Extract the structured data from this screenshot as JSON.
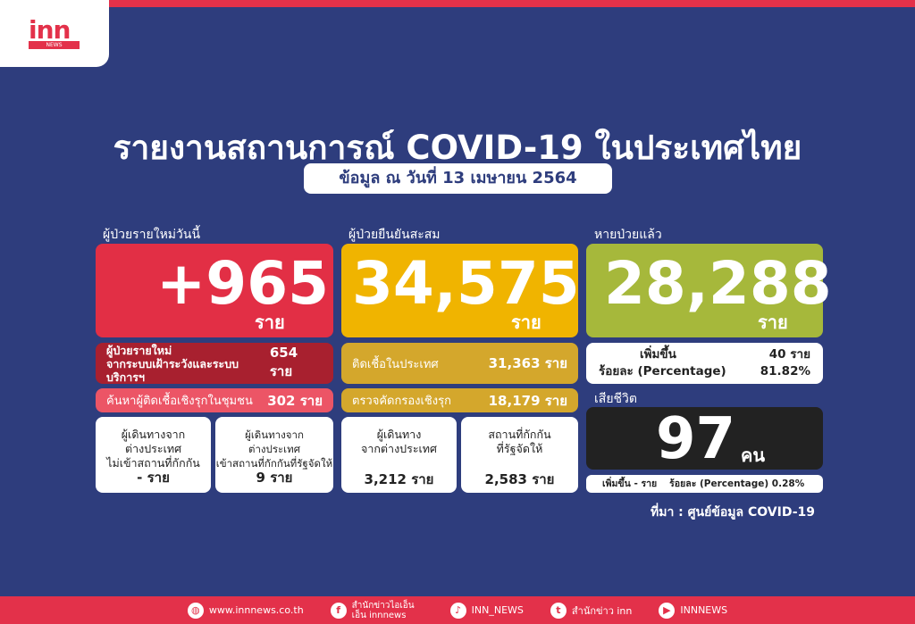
{
  "logo": {
    "mark": "inn",
    "sub": "NEWS"
  },
  "title": "รายงานสถานการณ์ COVID-19 ในประเทศไทย",
  "date": "ข้อมูล ณ วันที่ 13 เมษายน 2564",
  "new_cases": {
    "label": "ผู้ป่วยรายใหม่วันนี้",
    "value": "+965",
    "unit": "ราย",
    "row1_label_1": "ผู้ป่วยรายใหม่",
    "row1_label_2": "จากระบบเฝ้าระวังและระบบบริการฯ",
    "row1_value": "654 ราย",
    "row2_label": "ค้นหาผู้ติดเชื้อเชิงรุกในชุมชน",
    "row2_value": "302 ราย",
    "box1": {
      "l1": "ผู้เดินทางจาก",
      "l2": "ต่างประเทศ",
      "l3": "ไม่เข้าสถานที่กักกัน",
      "value": "- ราย"
    },
    "box2": {
      "l1": "ผู้เดินทางจาก",
      "l2": "ต่างประเทศ",
      "l3": "เข้าสถานที่กักกันที่รัฐจัดให้",
      "value": "9 ราย"
    }
  },
  "cumulative": {
    "label": "ผู้ป่วยยืนยันสะสม",
    "value": "34,575",
    "unit": "ราย",
    "row1_label": "ติดเชื้อในประเทศ",
    "row1_value": "31,363 ราย",
    "row2_label": "ตรวจคัดกรองเชิงรุก",
    "row2_value": "18,179 ราย",
    "box1": {
      "l1": "ผู้เดินทาง",
      "l2": "จากต่างประเทศ",
      "value": "3,212 ราย"
    },
    "box2": {
      "l1": "สถานที่กักกัน",
      "l2": "ที่รัฐจัดให้",
      "value": "2,583 ราย"
    }
  },
  "recovered": {
    "label": "หายป่วยแล้ว",
    "value": "28,288",
    "unit": "ราย",
    "inc_label": "เพิ่มขึ้น",
    "inc_value": "40 ราย",
    "pct_label": "ร้อยละ (Percentage)",
    "pct_value": "81.82%"
  },
  "deaths": {
    "label": "เสียชีวิต",
    "value": "97",
    "unit": "คน",
    "inc": "เพิ่มขึ้น - ราย",
    "pct": "ร้อยละ (Percentage) 0.28%"
  },
  "source": "ที่มา : ศูนย์ข้อมูล COVID-19",
  "footer": [
    {
      "icon": "globe-icon",
      "glyph": "◍",
      "text": "www.innnews.co.th"
    },
    {
      "icon": "facebook-icon",
      "glyph": "f",
      "text": "สำนักข่าวไอเอ็นเอ็น innnews"
    },
    {
      "icon": "tiktok-icon",
      "glyph": "♪",
      "text": "INN_NEWS"
    },
    {
      "icon": "twitter-icon",
      "glyph": "t",
      "text": "สำนักข่าว inn"
    },
    {
      "icon": "youtube-icon",
      "glyph": "▶",
      "text": "INNNEWS"
    }
  ],
  "colors": {
    "background": "#2e3d7d",
    "red": "#e22f45",
    "dark_red": "#a8202f",
    "pink": "#ec5566",
    "yellow": "#f0b400",
    "gold": "#d4a72c",
    "green": "#a6b83b",
    "black": "#222222"
  }
}
